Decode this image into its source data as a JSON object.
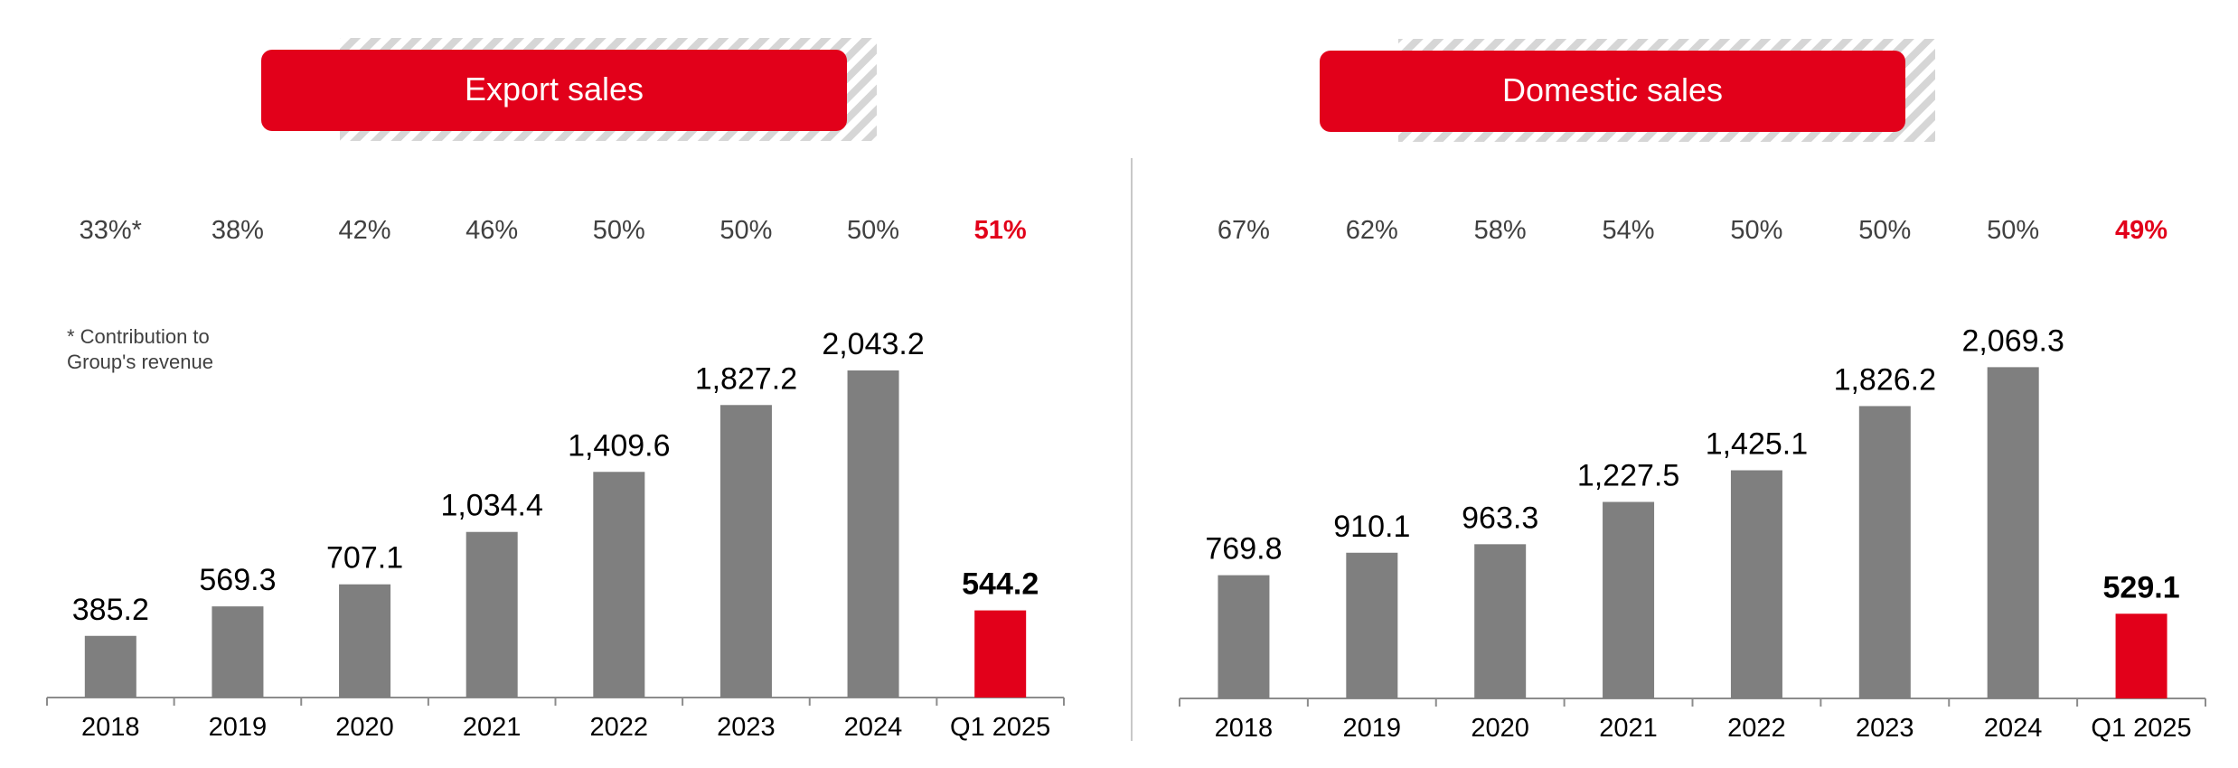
{
  "colors": {
    "bar": "#7f7f7f",
    "highlight": "#e2001a",
    "pill": "#e2001a",
    "axis": "#8c8c8c",
    "text": "#000000",
    "share_text": "#404040",
    "divider": "#c8c8c8",
    "hatch": "#d6d6d6"
  },
  "footnote": {
    "line1": "* Contribution to",
    "line2": "Group's revenue"
  },
  "chart_data": [
    {
      "type": "bar",
      "title": "Export sales",
      "categories": [
        "2018",
        "2019",
        "2020",
        "2021",
        "2022",
        "2023",
        "2024",
        "Q1 2025"
      ],
      "values": [
        385.2,
        569.3,
        707.1,
        1034.4,
        1409.6,
        1827.2,
        2043.2,
        544.2
      ],
      "value_labels": [
        "385.2",
        "569.3",
        "707.1",
        "1,034.4",
        "1,409.6",
        "1,827.2",
        "2,043.2",
        "544.2"
      ],
      "shares": [
        "33%*",
        "38%",
        "42%",
        "46%",
        "50%",
        "50%",
        "50%",
        "51%"
      ],
      "highlight_index": 7,
      "ylim": [
        0,
        2300
      ],
      "xlabel": "",
      "ylabel": ""
    },
    {
      "type": "bar",
      "title": "Domestic sales",
      "categories": [
        "2018",
        "2019",
        "2020",
        "2021",
        "2022",
        "2023",
        "2024",
        "Q1 2025"
      ],
      "values": [
        769.8,
        910.1,
        963.3,
        1227.5,
        1425.1,
        1826.2,
        2069.3,
        529.1
      ],
      "value_labels": [
        "769.8",
        "910.1",
        "963.3",
        "1,227.5",
        "1,425.1",
        "1,826.2",
        "2,069.3",
        "529.1"
      ],
      "shares": [
        "67%",
        "62%",
        "58%",
        "54%",
        "50%",
        "50%",
        "50%",
        "49%"
      ],
      "highlight_index": 7,
      "ylim": [
        0,
        2300
      ],
      "xlabel": "",
      "ylabel": ""
    }
  ]
}
